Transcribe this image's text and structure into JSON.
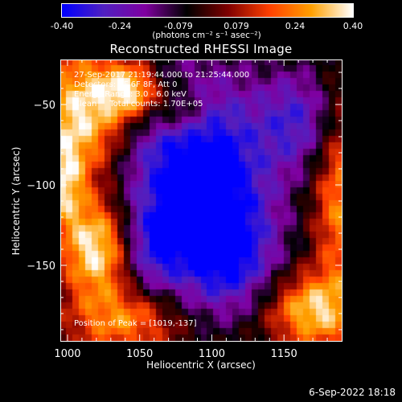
{
  "colorbar": {
    "ticks": [
      "-0.40",
      "-0.24",
      "-0.079",
      "0.079",
      "0.24",
      "0.40"
    ],
    "units": "(photons cm⁻² s⁻¹ asec⁻²)",
    "colors": [
      "#0000ff",
      "#5020c0",
      "#8000a0",
      "#000000",
      "#800000",
      "#ff4000",
      "#ffa000",
      "#ffffff"
    ]
  },
  "chart_data": {
    "type": "heatmap",
    "title": "Reconstructed RHESSI Image",
    "xlabel": "Heliocentric X (arcsec)",
    "ylabel": "Heliocentric Y (arcsec)",
    "xlim": [
      995,
      1190
    ],
    "ylim": [
      -197,
      -22
    ],
    "xticks": [
      1000,
      1050,
      1100,
      1150
    ],
    "yticks": [
      -50,
      -100,
      -150
    ],
    "colorbar_range": [
      -0.4,
      0.4
    ],
    "grid": false,
    "annotations": {
      "time_range": "27-Sep-2017 21:19:44.000 to 21:25:44.000",
      "detectors": "Detectors: 3F 6F 8F, Att 0",
      "energy": "Energy Range: 3.0 - 6.0 keV",
      "clean": "Clean     Total counts: 1.70E+05",
      "peak": "Position of Peak = [1019,-137]"
    },
    "peak_position": [
      1019,
      -137
    ]
  },
  "footer": {
    "date": "6-Sep-2022 18:18"
  }
}
